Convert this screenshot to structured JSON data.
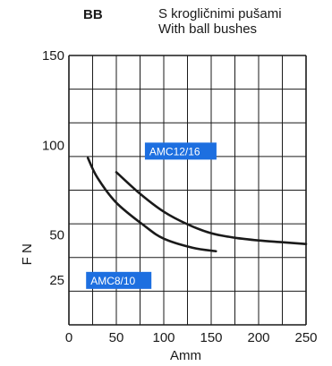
{
  "header": {
    "code": "BB",
    "title": "S krogličnimi pušami",
    "subtitle": "With ball bushes"
  },
  "colors": {
    "grid": "#1a1a1a",
    "curve": "#1a1a1a",
    "label_bg": "#1d6fe0",
    "label_text": "#ffffff"
  },
  "chart_data": {
    "type": "line",
    "xlabel": "Amm",
    "ylabel": "F N",
    "xlim": [
      0,
      250
    ],
    "ylim": [
      0,
      150
    ],
    "x_ticks": [
      0,
      50,
      100,
      150,
      200,
      250
    ],
    "y_ticks": [
      25,
      50,
      100,
      150
    ],
    "grid": true,
    "series": [
      {
        "name": "AMC8/10",
        "x": [
          20,
          30,
          50,
          80,
          100,
          130,
          155
        ],
        "y": [
          93,
          82,
          68,
          55,
          48,
          43,
          41
        ]
      },
      {
        "name": "AMC12/16",
        "x": [
          50,
          75,
          100,
          125,
          150,
          175,
          200,
          225,
          250
        ],
        "y": [
          85,
          73,
          63,
          56,
          51,
          48.5,
          47,
          46,
          45
        ]
      }
    ]
  }
}
